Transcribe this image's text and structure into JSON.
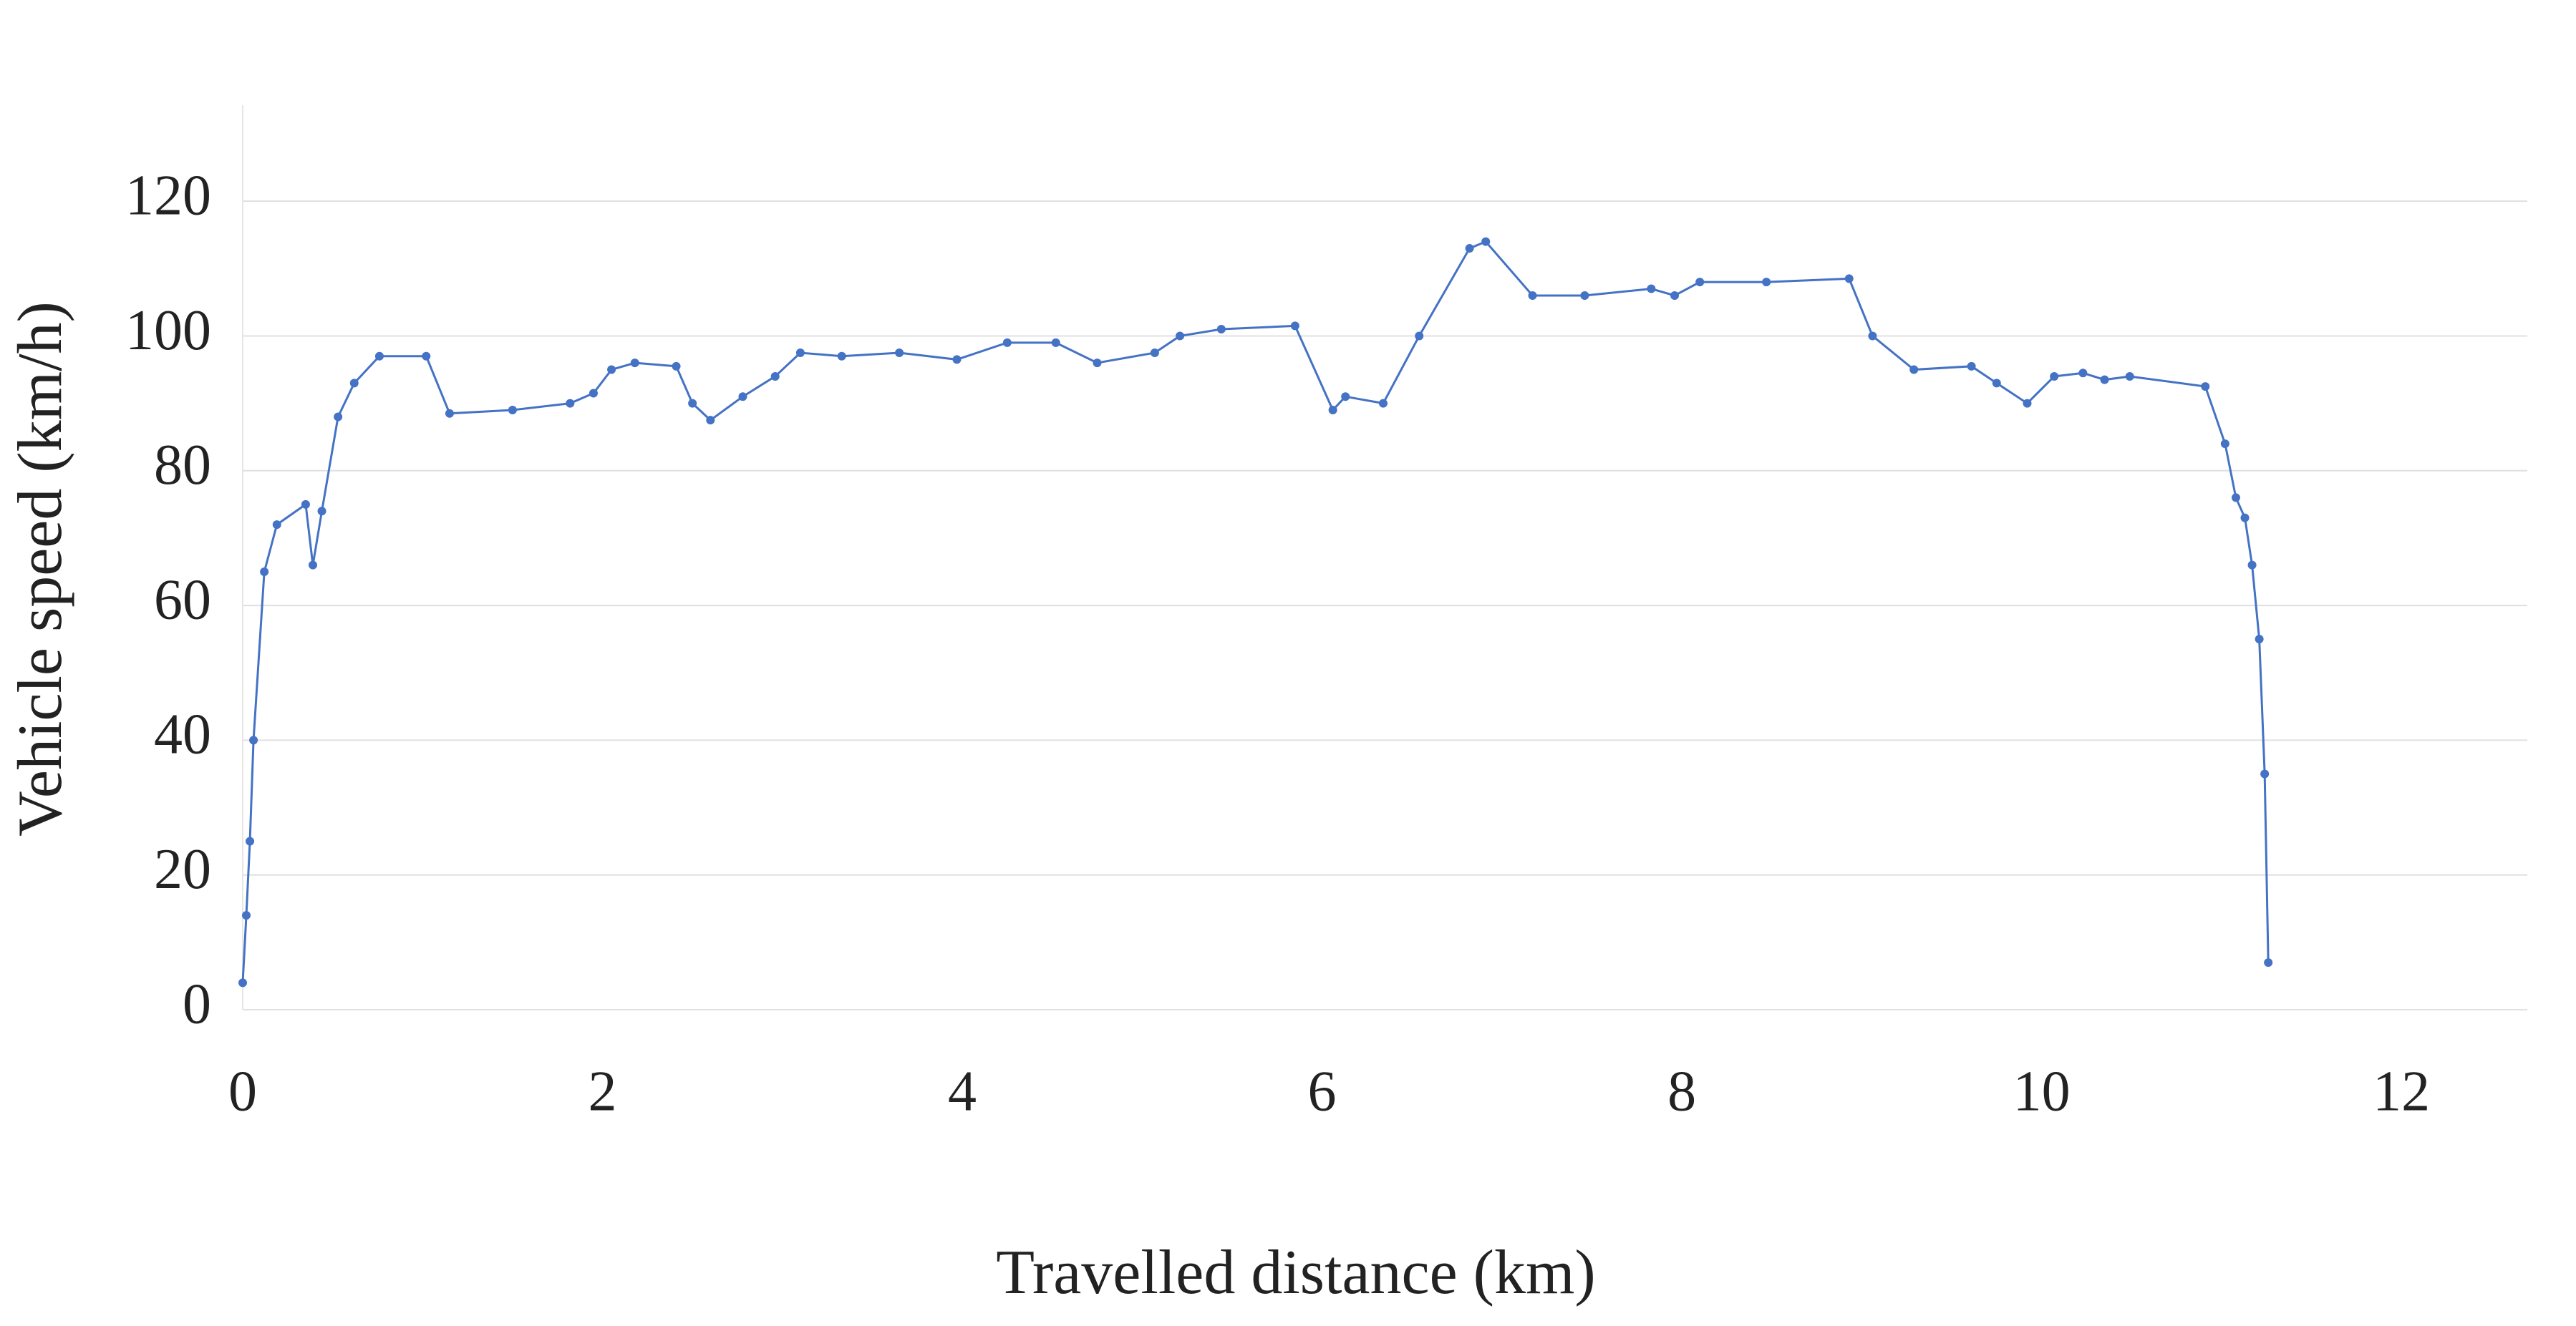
{
  "chart_data": {
    "type": "line",
    "xlabel": "Travelled distance (km)",
    "ylabel": "Vehicle speed (km/h)",
    "x": [
      0,
      0.02,
      0.04,
      0.06,
      0.12,
      0.19,
      0.35,
      0.39,
      0.44,
      0.53,
      0.62,
      0.76,
      1.02,
      1.15,
      1.5,
      1.82,
      1.95,
      2.05,
      2.18,
      2.41,
      2.5,
      2.6,
      2.78,
      2.96,
      3.1,
      3.33,
      3.65,
      3.97,
      4.25,
      4.52,
      4.75,
      5.07,
      5.21,
      5.44,
      5.85,
      6.06,
      6.13,
      6.34,
      6.54,
      6.82,
      6.91,
      7.17,
      7.46,
      7.83,
      7.96,
      8.1,
      8.47,
      8.93,
      9.06,
      9.29,
      9.61,
      9.75,
      9.92,
      10.07,
      10.23,
      10.35,
      10.49,
      10.91,
      11.02,
      11.08,
      11.13,
      11.17,
      11.21,
      11.24,
      11.26
    ],
    "values": [
      4,
      14,
      25,
      40,
      65,
      72,
      75,
      66,
      74,
      88,
      93,
      97,
      97,
      88.5,
      89,
      90,
      91.5,
      95,
      96,
      95.5,
      90,
      87.5,
      91,
      94,
      97.5,
      97,
      97.5,
      96.5,
      99,
      99,
      96,
      97.5,
      100,
      101,
      101.5,
      89,
      91,
      90,
      100,
      113,
      114,
      106,
      106,
      107,
      106,
      108,
      108,
      108.5,
      100,
      95,
      95.5,
      93,
      90,
      94,
      94.5,
      93.5,
      94,
      92.5,
      84,
      76,
      73,
      66,
      55,
      35,
      7
    ],
    "color": "#4472c4",
    "xlim": [
      0,
      12.7
    ],
    "xticks": [
      0,
      2,
      4,
      6,
      8,
      10,
      12
    ],
    "ylim": [
      0,
      130
    ],
    "yticks": [
      0,
      20,
      40,
      60,
      80,
      100,
      120
    ],
    "grid": true
  }
}
